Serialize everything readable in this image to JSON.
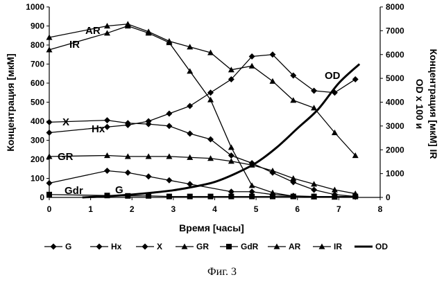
{
  "caption": "Фиг. 3",
  "chart_data": {
    "type": "line",
    "xlabel": "Время [часы]",
    "ylabel": "Концентрация [мкМ]",
    "y2label_line1": "OD x 100 и",
    "y2label_line2": "Концентрация [мкМ] IR",
    "xlim": [
      0,
      8
    ],
    "ylim": [
      0,
      1000
    ],
    "y2lim": [
      0,
      8000
    ],
    "x_ticks": [
      "0",
      "1",
      "2",
      "3",
      "4",
      "5",
      "6",
      "7",
      "8"
    ],
    "y_ticks": [
      "0",
      "100",
      "200",
      "300",
      "400",
      "500",
      "600",
      "700",
      "800",
      "900",
      "1000"
    ],
    "y2_ticks": [
      "0",
      "1000",
      "2000",
      "3000",
      "4000",
      "5000",
      "6000",
      "7000",
      "8000"
    ],
    "grid": false,
    "legend_position": "bottom",
    "series": [
      {
        "name": "G",
        "axis": "left",
        "marker": "diamond",
        "label": "G",
        "x": [
          0,
          1.4,
          1.9,
          2.4,
          2.9,
          3.4,
          4.4,
          4.9,
          5.4,
          5.9,
          6.4,
          6.9,
          7.4
        ],
        "y": [
          75,
          140,
          130,
          110,
          90,
          70,
          30,
          30,
          15,
          8,
          5,
          5,
          3
        ]
      },
      {
        "name": "Hx",
        "axis": "left",
        "marker": "diamond",
        "label": "Hx",
        "x": [
          0,
          1.4,
          1.9,
          2.4,
          2.9,
          3.4,
          3.9,
          4.4,
          4.9,
          5.4,
          5.9,
          6.4,
          6.9,
          7.4
        ],
        "y": [
          395,
          405,
          390,
          385,
          375,
          335,
          305,
          220,
          180,
          130,
          80,
          40,
          15,
          5
        ]
      },
      {
        "name": "X",
        "axis": "left",
        "marker": "diamond",
        "label": "X",
        "x": [
          0,
          1.4,
          1.9,
          2.4,
          2.9,
          3.4,
          3.9,
          4.4,
          4.9,
          5.4,
          5.9,
          6.4,
          6.9,
          7.4
        ],
        "y": [
          340,
          370,
          380,
          400,
          440,
          480,
          550,
          620,
          740,
          750,
          640,
          560,
          550,
          620
        ]
      },
      {
        "name": "GR",
        "axis": "left",
        "marker": "triangle",
        "label": "GR",
        "x": [
          0,
          1.4,
          1.9,
          2.4,
          2.9,
          3.4,
          3.9,
          4.4,
          4.9,
          5.4,
          5.9,
          6.4,
          6.9,
          7.4
        ],
        "y": [
          215,
          220,
          215,
          215,
          215,
          210,
          205,
          190,
          170,
          140,
          100,
          70,
          40,
          20
        ]
      },
      {
        "name": "GdR",
        "axis": "left",
        "marker": "square",
        "label": "Gdr",
        "x": [
          0,
          1.4,
          1.9,
          2.4,
          2.9,
          3.4,
          3.9,
          4.4,
          4.9,
          5.4,
          5.9,
          6.4,
          6.9,
          7.4
        ],
        "y": [
          15,
          10,
          8,
          8,
          5,
          5,
          5,
          5,
          5,
          5,
          5,
          5,
          5,
          5
        ]
      },
      {
        "name": "AR",
        "axis": "left",
        "marker": "triangle",
        "label": "AR",
        "x": [
          0,
          1.4,
          1.9,
          2.4,
          2.9,
          3.4,
          3.9,
          4.4,
          4.9,
          5.4,
          5.9,
          6.4,
          6.9,
          7.4
        ],
        "y": [
          840,
          900,
          910,
          870,
          820,
          790,
          760,
          670,
          690,
          610,
          510,
          470,
          340,
          220
        ]
      },
      {
        "name": "IR",
        "axis": "right",
        "marker": "triangle",
        "label": "IR",
        "x": [
          0,
          1.4,
          1.9,
          2.4,
          2.9,
          3.4,
          3.9,
          4.4,
          4.9,
          5.4,
          5.9,
          6.4,
          6.9
        ],
        "y": [
          6200,
          6900,
          7200,
          6900,
          6500,
          5300,
          4100,
          2100,
          500,
          200,
          50,
          20,
          10
        ]
      },
      {
        "name": "OD",
        "axis": "right",
        "marker": "none",
        "label": "OD",
        "x": [
          0.8,
          1.4,
          2.0,
          2.5,
          3.0,
          3.5,
          4.0,
          4.5,
          5.0,
          5.5,
          6.0,
          6.5,
          7.0,
          7.5
        ],
        "y": [
          0,
          50,
          120,
          200,
          300,
          450,
          650,
          1000,
          1450,
          2100,
          2900,
          3700,
          4800,
          5600
        ]
      }
    ]
  }
}
